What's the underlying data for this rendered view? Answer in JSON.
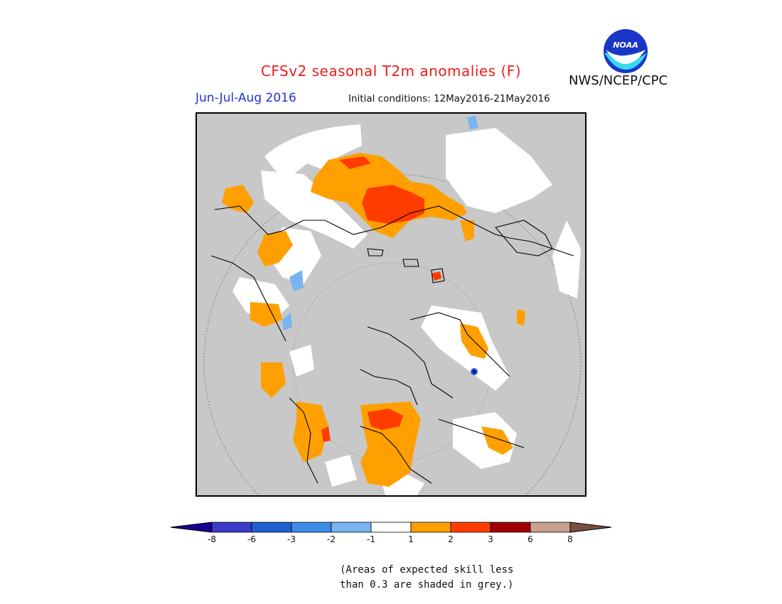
{
  "header": {
    "title": "CFSv2 seasonal T2m anomalies (F)",
    "season": "Jun-Jul-Aug 2016",
    "initial_conditions": "Initial conditions: 12May2016-21May2016",
    "agency": "NWS/NCEP/CPC",
    "logo_text": "NOAA"
  },
  "colors": {
    "title_red": "#ee1c1c",
    "season_blue": "#2233cc",
    "skill_grey": "#c8c8c8",
    "noaa_blue": "#1a36c8",
    "noaa_cyan": "#38d8f0"
  },
  "legend": {
    "bins": [
      {
        "color": "#150090",
        "range": "< -8"
      },
      {
        "color": "#3c3cc8",
        "range": "-8 to -6"
      },
      {
        "color": "#1e62d2",
        "range": "-6 to -3"
      },
      {
        "color": "#3c8ce6",
        "range": "-3 to -2"
      },
      {
        "color": "#78b4f0",
        "range": "-2 to -1"
      },
      {
        "color": "#ffffff",
        "range": "-1 to 1"
      },
      {
        "color": "#ffa000",
        "range": "1 to 2"
      },
      {
        "color": "#ff3c00",
        "range": "2 to 3"
      },
      {
        "color": "#a00000",
        "range": "3 to 6"
      },
      {
        "color": "#c8a090",
        "range": "6 to 8"
      },
      {
        "color": "#785040",
        "range": "> 8"
      }
    ],
    "ticks": [
      "-8",
      "-6",
      "-3",
      "-2",
      "-1",
      "1",
      "2",
      "3",
      "6",
      "8"
    ]
  },
  "note": {
    "line1": "(Areas of expected skill less",
    "line2": "than 0.3 are shaded in grey.)"
  }
}
